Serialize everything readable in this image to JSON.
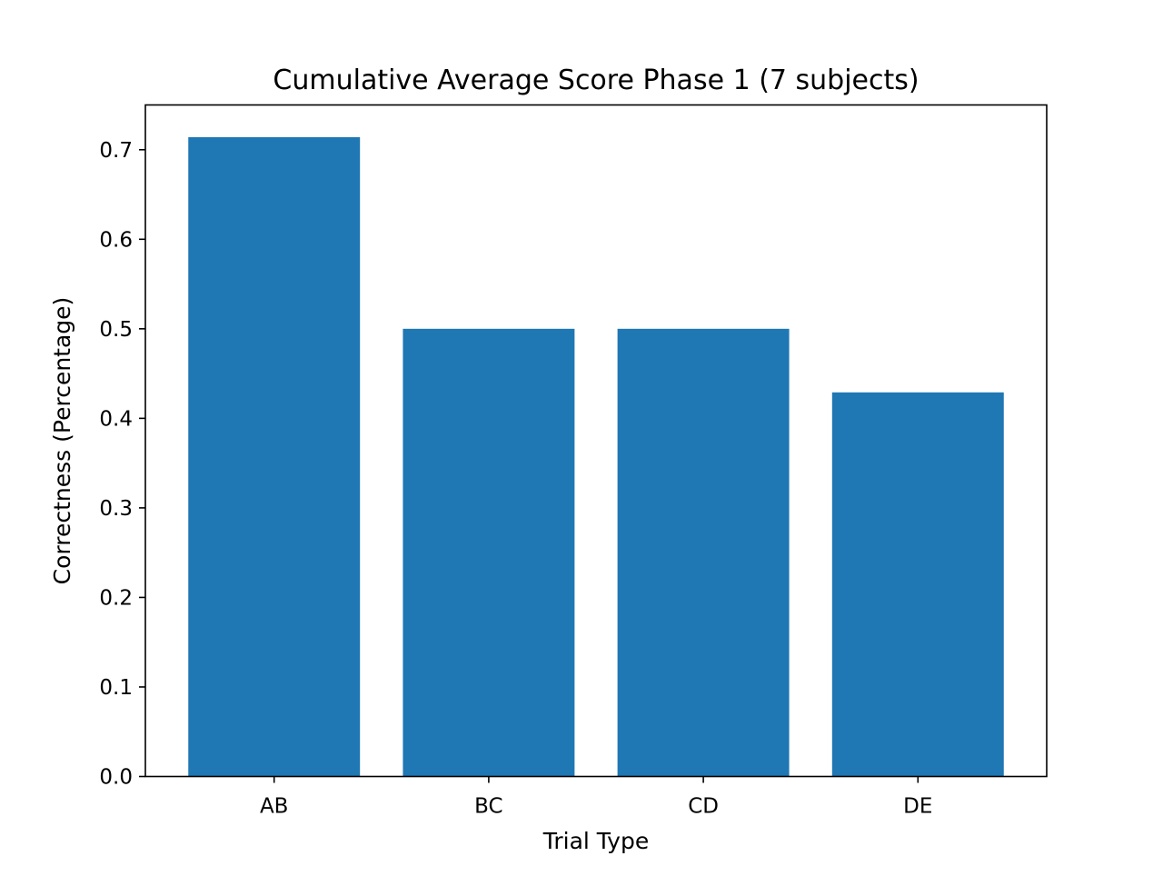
{
  "chart_data": {
    "type": "bar",
    "title": "Cumulative Average Score Phase 1 (7 subjects)",
    "xlabel": "Trial Type",
    "ylabel": "Correctness (Percentage)",
    "categories": [
      "AB",
      "BC",
      "CD",
      "DE"
    ],
    "values": [
      0.714,
      0.5,
      0.5,
      0.429
    ],
    "ylim": [
      0,
      0.75
    ],
    "yticks": [
      0.0,
      0.1,
      0.2,
      0.3,
      0.4,
      0.5,
      0.6,
      0.7
    ],
    "ytick_labels": [
      "0.0",
      "0.1",
      "0.2",
      "0.3",
      "0.4",
      "0.5",
      "0.6",
      "0.7"
    ],
    "bar_color": "#1f77b4",
    "grid": false,
    "legend": "none"
  }
}
